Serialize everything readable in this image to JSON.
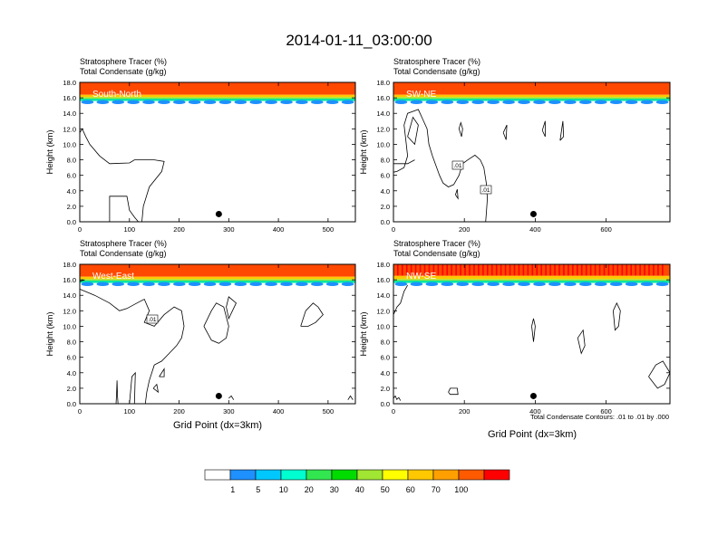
{
  "figure": {
    "title": "2014-01-11_03:00:00",
    "contour_note": "Total Condensate Contours: .01 to .01 by .000",
    "xlabel_common": "Grid Point (dx=3km)"
  },
  "chart_data": [
    {
      "type": "heatmap",
      "panel": "South-North",
      "title_lines": [
        "Stratosphere Tracer   (%)",
        "Total Condensate   (g/kg)"
      ],
      "ylabel": "Height (km)",
      "xlabel": "",
      "xlim": [
        0,
        555
      ],
      "ylim": [
        0,
        18
      ],
      "xticks": [
        0,
        100,
        200,
        300,
        400,
        500
      ],
      "yticks": [
        "0.0",
        "2.0",
        "4.0",
        "6.0",
        "8.0",
        "10.0",
        "12.0",
        "14.0",
        "16.0",
        "18.0"
      ],
      "tracer_layers": [
        {
          "level": 100,
          "from": 16.4,
          "to": 18.0
        },
        {
          "level": 60,
          "from": 16.1,
          "to": 16.4
        },
        {
          "level": 40,
          "from": 15.9,
          "to": 16.1
        },
        {
          "level": 20,
          "from": 15.6,
          "to": 15.9
        }
      ],
      "contour_labels": [],
      "marker": {
        "x": 280,
        "y": 1.0
      }
    },
    {
      "type": "heatmap",
      "panel": "SW-NE",
      "title_lines": [
        "Stratosphere Tracer   (%)",
        "Total Condensate   (g/kg)"
      ],
      "ylabel": "Height (km)",
      "xlabel": "",
      "xlim": [
        0,
        780
      ],
      "ylim": [
        0,
        18
      ],
      "xticks": [
        0,
        200,
        400,
        600
      ],
      "yticks": [
        "0.0",
        "2.0",
        "4.0",
        "6.0",
        "8.0",
        "10.0",
        "12.0",
        "14.0",
        "16.0",
        "18.0"
      ],
      "tracer_layers": [
        {
          "level": 100,
          "from": 16.4,
          "to": 18.0
        },
        {
          "level": 60,
          "from": 16.1,
          "to": 16.4
        },
        {
          "level": 40,
          "from": 15.9,
          "to": 16.1
        },
        {
          "level": 20,
          "from": 15.6,
          "to": 15.9
        }
      ],
      "contour_labels": [
        ".01",
        ".01"
      ],
      "marker": {
        "x": 395,
        "y": 1.0
      }
    },
    {
      "type": "heatmap",
      "panel": "West-East",
      "title_lines": [
        "Stratosphere Tracer   (%)",
        "Total Condensate   (g/kg)"
      ],
      "ylabel": "Height (km)",
      "xlabel": "Grid Point (dx=3km)",
      "xlim": [
        0,
        555
      ],
      "ylim": [
        0,
        18
      ],
      "xticks": [
        0,
        100,
        200,
        300,
        400,
        500
      ],
      "yticks": [
        "0.0",
        "2.0",
        "4.0",
        "6.0",
        "8.0",
        "10.0",
        "12.0",
        "14.0",
        "16.0",
        "18.0"
      ],
      "tracer_layers": [
        {
          "level": 100,
          "from": 16.4,
          "to": 18.0
        },
        {
          "level": 60,
          "from": 16.1,
          "to": 16.4
        },
        {
          "level": 40,
          "from": 15.9,
          "to": 16.1
        },
        {
          "level": 20,
          "from": 15.6,
          "to": 15.9
        }
      ],
      "contour_labels": [
        ".01"
      ],
      "marker": {
        "x": 280,
        "y": 1.0
      }
    },
    {
      "type": "heatmap",
      "panel": "NW-SE",
      "title_lines": [
        "Stratosphere Tracer   (%)",
        "Total Condensate   (g/kg)"
      ],
      "ylabel": "Height (km)",
      "xlabel": "Grid Point (dx=3km)",
      "xlim": [
        0,
        780
      ],
      "ylim": [
        0,
        18
      ],
      "xticks": [
        0,
        200,
        400,
        600
      ],
      "yticks": [
        "0.0",
        "2.0",
        "4.0",
        "6.0",
        "8.0",
        "10.0",
        "12.0",
        "14.0",
        "16.0",
        "18.0"
      ],
      "tracer_layers": [
        {
          "level": 100,
          "from": 16.5,
          "to": 18.0
        },
        {
          "level": 60,
          "from": 16.1,
          "to": 16.5
        },
        {
          "level": 40,
          "from": 15.9,
          "to": 16.1
        },
        {
          "level": 20,
          "from": 15.6,
          "to": 15.9
        }
      ],
      "contour_labels": [],
      "marker": {
        "x": 395,
        "y": 1.0
      }
    }
  ],
  "colorbar": {
    "levels": [
      "1",
      "5",
      "10",
      "20",
      "30",
      "40",
      "50",
      "60",
      "70",
      "100"
    ],
    "colors": [
      "#ffffff",
      "#1e90ff",
      "#00c8ff",
      "#00ffd0",
      "#32e650",
      "#00dc00",
      "#a0e632",
      "#ffff00",
      "#ffc800",
      "#ffa000",
      "#ff5a00",
      "#ff0000"
    ]
  },
  "tracer_colors": {
    "100": "#ff4800",
    "70": "#ff7a00",
    "60": "#ffc800",
    "50": "#ffff00",
    "40": "#a0e632",
    "30": "#00dc00",
    "20": "#00e6a0",
    "10": "#00c8ff",
    "5": "#1e90ff"
  }
}
